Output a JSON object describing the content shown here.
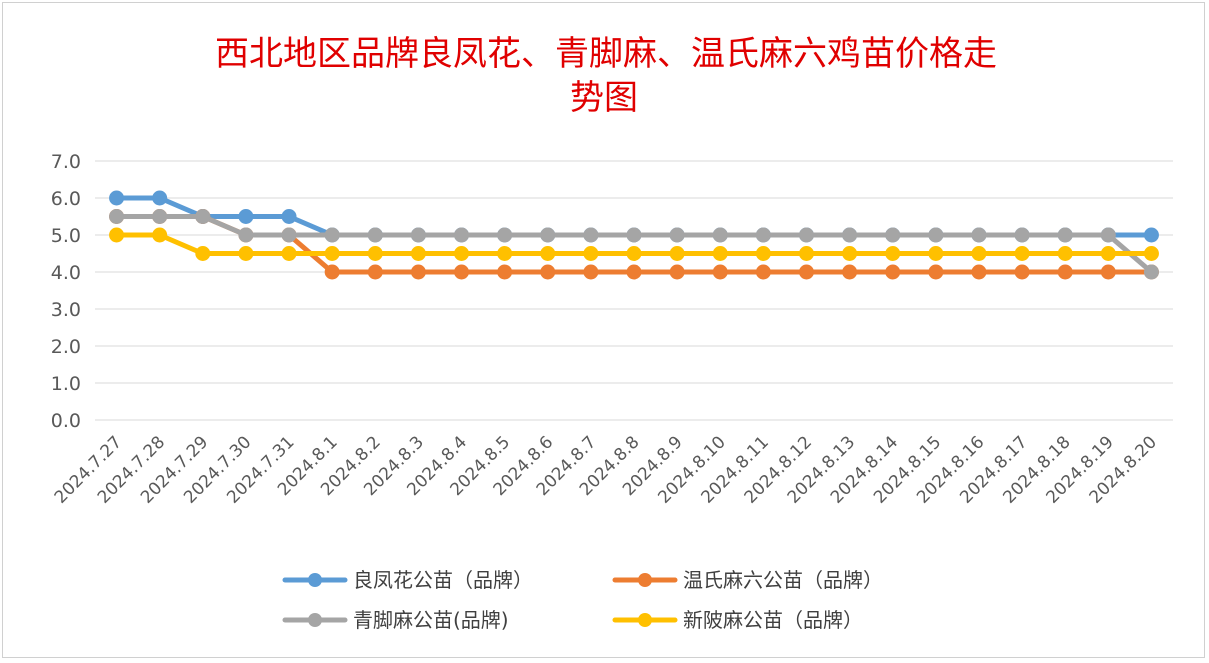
{
  "chart_data": {
    "type": "line",
    "title": "西北地区品牌良凤花、青脚麻、温氏麻六鸡苗价格走势图",
    "title_lines": [
      "西北地区品牌良凤花、青脚麻、温氏麻六鸡苗价格走",
      "势图"
    ],
    "xlabel": "",
    "ylabel": "",
    "ylim": [
      0,
      7
    ],
    "yticks": [
      "0.0",
      "1.0",
      "2.0",
      "3.0",
      "4.0",
      "5.0",
      "6.0",
      "7.0"
    ],
    "grid": true,
    "legend_position": "bottom",
    "categories": [
      "2024.7.27",
      "2024.7.28",
      "2024.7.29",
      "2024.7.30",
      "2024.7.31",
      "2024.8.1",
      "2024.8.2",
      "2024.8.3",
      "2024.8.4",
      "2024.8.5",
      "2024.8.6",
      "2024.8.7",
      "2024.8.8",
      "2024.8.9",
      "2024.8.10",
      "2024.8.11",
      "2024.8.12",
      "2024.8.13",
      "2024.8.14",
      "2024.8.15",
      "2024.8.16",
      "2024.8.17",
      "2024.8.18",
      "2024.8.19",
      "2024.8.20"
    ],
    "series": [
      {
        "name": "良凤花公苗（品牌）",
        "color": "#5b9bd5",
        "values": [
          6.0,
          6.0,
          5.5,
          5.5,
          5.5,
          5.0,
          5.0,
          5.0,
          5.0,
          5.0,
          5.0,
          5.0,
          5.0,
          5.0,
          5.0,
          5.0,
          5.0,
          5.0,
          5.0,
          5.0,
          5.0,
          5.0,
          5.0,
          5.0,
          5.0
        ]
      },
      {
        "name": "温氏麻六公苗（品牌）",
        "color": "#ed7d31",
        "values": [
          5.5,
          5.5,
          5.5,
          5.0,
          5.0,
          4.0,
          4.0,
          4.0,
          4.0,
          4.0,
          4.0,
          4.0,
          4.0,
          4.0,
          4.0,
          4.0,
          4.0,
          4.0,
          4.0,
          4.0,
          4.0,
          4.0,
          4.0,
          4.0,
          4.0
        ]
      },
      {
        "name": "青脚麻公苗(品牌)",
        "color": "#a5a5a5",
        "values": [
          5.5,
          5.5,
          5.5,
          5.0,
          5.0,
          5.0,
          5.0,
          5.0,
          5.0,
          5.0,
          5.0,
          5.0,
          5.0,
          5.0,
          5.0,
          5.0,
          5.0,
          5.0,
          5.0,
          5.0,
          5.0,
          5.0,
          5.0,
          5.0,
          4.0
        ]
      },
      {
        "name": "新陂麻公苗（品牌）",
        "color": "#ffc000",
        "values": [
          5.0,
          5.0,
          4.5,
          4.5,
          4.5,
          4.5,
          4.5,
          4.5,
          4.5,
          4.5,
          4.5,
          4.5,
          4.5,
          4.5,
          4.5,
          4.5,
          4.5,
          4.5,
          4.5,
          4.5,
          4.5,
          4.5,
          4.5,
          4.5,
          4.5
        ]
      }
    ]
  }
}
